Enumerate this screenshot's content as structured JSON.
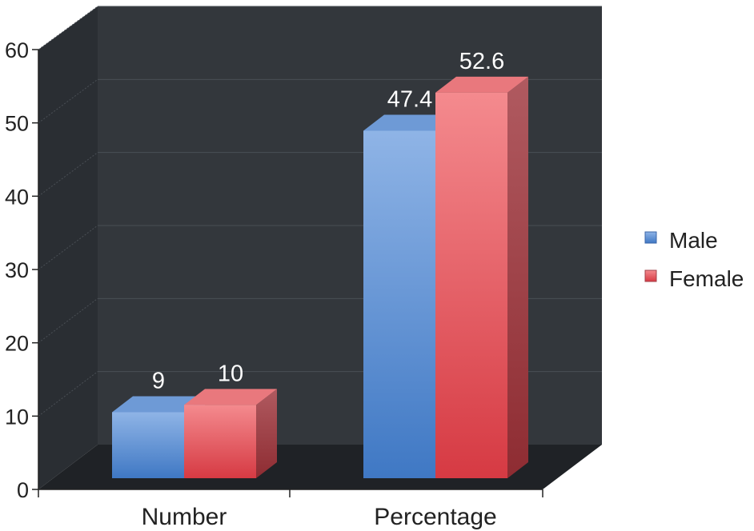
{
  "chart_data": {
    "type": "bar",
    "categories": [
      "Number",
      "Percentage"
    ],
    "series": [
      {
        "name": "Male",
        "values": [
          9,
          47.4
        ],
        "color": "#4f87cf"
      },
      {
        "name": "Female",
        "values": [
          10,
          52.6
        ],
        "color": "#e24a52"
      }
    ],
    "data_labels": [
      [
        "9",
        "47.4"
      ],
      [
        "10",
        "52.6"
      ]
    ],
    "ylim": [
      0,
      60
    ],
    "yticks": [
      0,
      10,
      20,
      30,
      40,
      50,
      60
    ],
    "title": "",
    "xlabel": "",
    "ylabel": "",
    "grid": true,
    "legend_position": "right",
    "three_d": true,
    "background_color": "#31353a"
  }
}
